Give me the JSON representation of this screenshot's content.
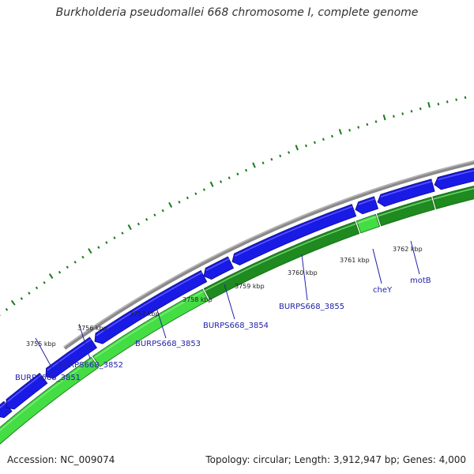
{
  "title": "Burkholderia pseudomallei 668 chromosome I, complete genome",
  "footer": {
    "accession": "Accession: NC_009074",
    "summary": "Topology: circular; Length: 3,912,947 bp; Genes: 4,000"
  },
  "colors": {
    "backbone": "#8a8a8a",
    "forward_gene": "#1a1ae6",
    "reverse_gene_light": "#44dd44",
    "reverse_gene_dark": "#1f8a1f",
    "tick": "#1a7a1a",
    "label_line": "#2222aa"
  },
  "scale_labels": [
    "3755 kbp",
    "3756 kbp",
    "3757 kbp",
    "3758 kbp",
    "3759 kbp",
    "3760 kbp",
    "3761 kbp",
    "3762 kbp"
  ],
  "gene_labels": [
    "BURPS668_3851",
    "BURPS668_3852",
    "BURPS668_3853",
    "BURPS668_3854",
    "BURPS668_3855",
    "cheY",
    "motB"
  ]
}
